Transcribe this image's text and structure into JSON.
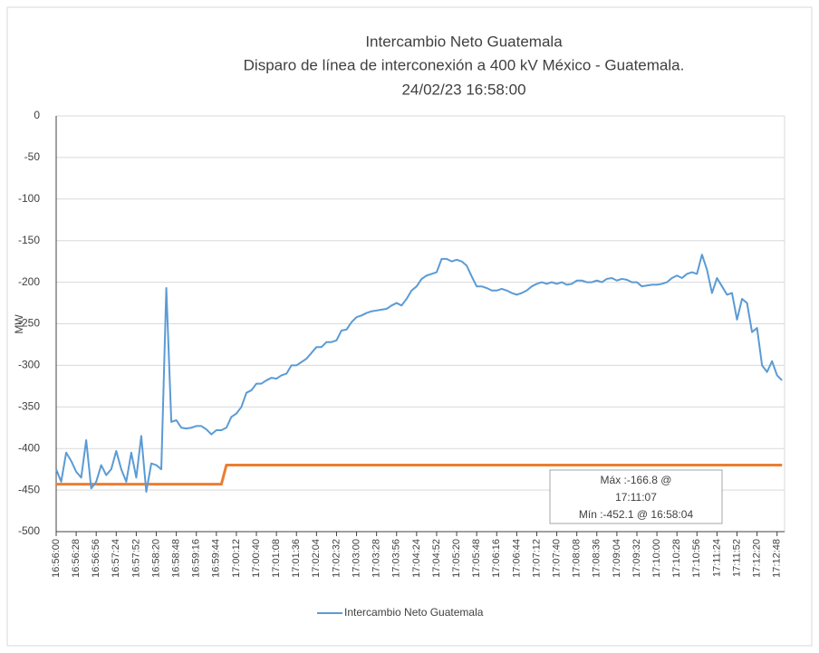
{
  "chart_data": {
    "type": "line",
    "title": "Intercambio Neto Guatemala",
    "subtitle": [
      "Disparo de línea de interconexión a 400 kV México - Guatemala.",
      "24/02/23 16:58:00"
    ],
    "y_label": "MW",
    "annotation": [
      "Máx :-166.8 @",
      "17:11:07",
      "Mín :-452.1 @ 16:58:04"
    ],
    "categories": [
      "16:56:00",
      null,
      null,
      null,
      "16:56:28",
      null,
      null,
      null,
      "16:56:56",
      null,
      null,
      null,
      "16:57:24",
      null,
      null,
      null,
      "16:57:52",
      null,
      null,
      null,
      "16:58:20",
      null,
      null,
      null,
      "16:58:48",
      null,
      null,
      null,
      "16:59:16",
      null,
      null,
      null,
      "16:59:44",
      null,
      null,
      null,
      "17:00:12",
      null,
      null,
      null,
      "17:00:40",
      null,
      null,
      null,
      "17:01:08",
      null,
      null,
      null,
      "17:01:36",
      null,
      null,
      null,
      "17:02:04",
      null,
      null,
      null,
      "17:02:32",
      null,
      null,
      null,
      "17:03:00",
      null,
      null,
      null,
      "17:03:28",
      null,
      null,
      null,
      "17:03:56",
      null,
      null,
      null,
      "17:04:24",
      null,
      null,
      null,
      "17:04:52",
      null,
      null,
      null,
      "17:05:20",
      null,
      null,
      null,
      "17:05:48",
      null,
      null,
      null,
      "17:06:16",
      null,
      null,
      null,
      "17:06:44",
      null,
      null,
      null,
      "17:07:12",
      null,
      null,
      null,
      "17:07:40",
      null,
      null,
      null,
      "17:08:08",
      null,
      null,
      null,
      "17:08:36",
      null,
      null,
      null,
      "17:09:04",
      null,
      null,
      null,
      "17:09:32",
      null,
      null,
      null,
      "17:10:00",
      null,
      null,
      null,
      "17:10:28",
      null,
      null,
      null,
      "17:10:56",
      null,
      null,
      null,
      "17:11:24",
      null,
      null,
      null,
      "17:11:52",
      null,
      null,
      null,
      "17:12:20",
      null,
      null,
      null,
      "17:12:48",
      null
    ],
    "series": [
      {
        "name": "Intercambio Neto Guatemala",
        "color": "#5b9bd5",
        "values": [
          -425,
          -440,
          -405,
          -415,
          -428,
          -435,
          -390,
          -448,
          -440,
          -420,
          -432,
          -425,
          -403,
          -425,
          -440,
          -405,
          -435,
          -385,
          -452.1,
          -418,
          -420,
          -425,
          -207,
          -368,
          -366,
          -375,
          -376,
          -375,
          -373,
          -373,
          -377,
          -383,
          -378,
          -378,
          -375,
          -362,
          -358,
          -350,
          -333,
          -330,
          -322,
          -322,
          -318,
          -315,
          -316,
          -312,
          -310,
          -300,
          -300,
          -296,
          -292,
          -285,
          -278,
          -278,
          -272,
          -272,
          -270,
          -258,
          -257,
          -248,
          -242,
          -240,
          -237,
          -235,
          -234,
          -233,
          -232,
          -228,
          -225,
          -228,
          -220,
          -210,
          -205,
          -196,
          -192,
          -190,
          -188,
          -172,
          -172,
          -175,
          -173,
          -175,
          -180,
          -193,
          -205,
          -205,
          -207,
          -210,
          -210,
          -208,
          -210,
          -213,
          -215,
          -213,
          -210,
          -205,
          -202,
          -200,
          -202,
          -200,
          -202,
          -200,
          -203,
          -202,
          -198,
          -198,
          -200,
          -200,
          -198,
          -200,
          -196,
          -195,
          -198,
          -196,
          -197,
          -200,
          -200,
          -205,
          -204,
          -203,
          -203,
          -202,
          -200,
          -195,
          -192,
          -195,
          -190,
          -188,
          -190,
          -166.8,
          -185,
          -213,
          -195,
          -205,
          -215,
          -213,
          -245,
          -220,
          -225,
          -260,
          -255,
          -300,
          -308,
          -295,
          -312,
          -318
        ]
      },
      {
        "color": "#ed7d31",
        "values": [
          -443,
          -443,
          -443,
          -443,
          -443,
          -443,
          -443,
          -443,
          -443,
          -443,
          -443,
          -443,
          -443,
          -443,
          -443,
          -443,
          -443,
          -443,
          -443,
          -443,
          -443,
          -443,
          -443,
          -443,
          -443,
          -443,
          -443,
          -443,
          -443,
          -443,
          -443,
          -443,
          -443,
          -443,
          -420,
          -420,
          -420,
          -420,
          -420,
          -420,
          -420,
          -420,
          -420,
          -420,
          -420,
          -420,
          -420,
          -420,
          -420,
          -420,
          -420,
          -420,
          -420,
          -420,
          -420,
          -420,
          -420,
          -420,
          -420,
          -420,
          -420,
          -420,
          -420,
          -420,
          -420,
          -420,
          -420,
          -420,
          -420,
          -420,
          -420,
          -420,
          -420,
          -420,
          -420,
          -420,
          -420,
          -420,
          -420,
          -420,
          -420,
          -420,
          -420,
          -420,
          -420,
          -420,
          -420,
          -420,
          -420,
          -420,
          -420,
          -420,
          -420,
          -420,
          -420,
          -420,
          -420,
          -420,
          -420,
          -420,
          -420,
          -420,
          -420,
          -420,
          -420,
          -420,
          -420,
          -420,
          -420,
          -420,
          -420,
          -420,
          -420,
          -420,
          -420,
          -420,
          -420,
          -420,
          -420,
          -420,
          -420,
          -420,
          -420,
          -420,
          -420,
          -420,
          -420,
          -420,
          -420,
          -420,
          -420,
          -420,
          -420,
          -420,
          -420,
          -420,
          -420,
          -420,
          -420,
          -420,
          -420,
          -420,
          -420,
          -420,
          -420,
          -420
        ]
      }
    ],
    "ylim": [
      -500,
      0
    ],
    "yticks": [
      0,
      -50,
      -100,
      -150,
      -200,
      -250,
      -300,
      -350,
      -400,
      -450,
      -500
    ],
    "grid": true,
    "legend": "bottom"
  }
}
